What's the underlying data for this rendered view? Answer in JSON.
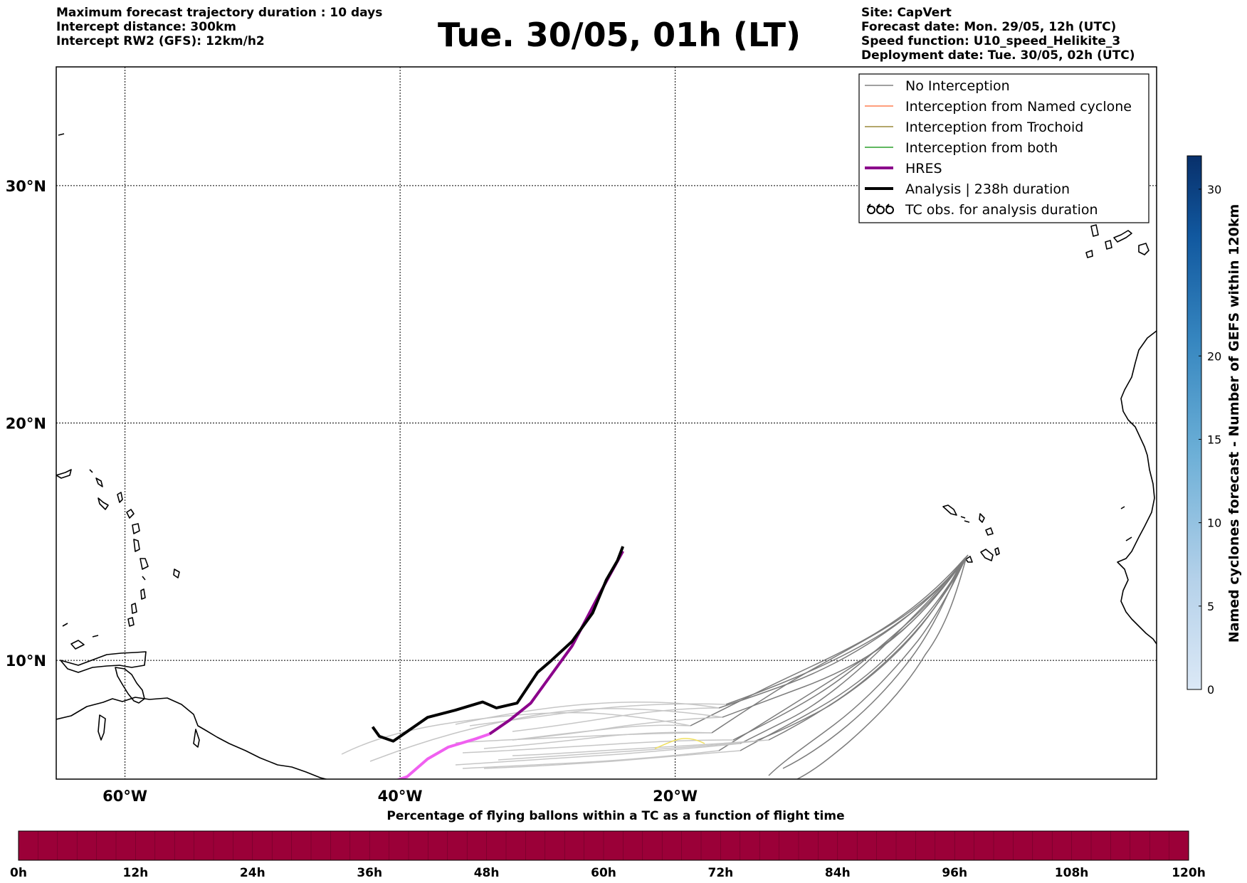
{
  "header": {
    "left": [
      "Maximum forecast trajectory duration : 10 days",
      "Intercept distance: 300km",
      "Intercept RW2 (GFS):  12km/h2"
    ],
    "title": "Tue. 30/05, 01h (LT)",
    "right": [
      "Site: CapVert",
      "Forecast date: Mon. 29/05, 12h (UTC)",
      "Speed function: U10_speed_Helikite_3",
      "Deployment date: Tue. 30/05, 02h (UTC)"
    ]
  },
  "map": {
    "lon_range": [
      -65,
      15
    ],
    "lat_range": [
      5,
      35
    ],
    "lon_ticks": [
      {
        "value": -60,
        "label": "60°W"
      },
      {
        "value": -40,
        "label": "40°W"
      },
      {
        "value": -20,
        "label": "20°W"
      }
    ],
    "lat_ticks": [
      {
        "value": 30,
        "label": "30°N"
      },
      {
        "value": 20,
        "label": "20°N"
      },
      {
        "value": 10,
        "label": "10°N"
      }
    ],
    "grid": true
  },
  "legend": {
    "items": [
      {
        "label": "No Interception",
        "color": "#808080",
        "style": "thin-line"
      },
      {
        "label": "Interception from Named cyclone",
        "color": "#ff7f50",
        "style": "thin-line"
      },
      {
        "label": "Interception from Trochoid",
        "color": "#9a8a3a",
        "style": "thin-line"
      },
      {
        "label": "Interception from both",
        "color": "#2ca02c",
        "style": "thin-line"
      },
      {
        "label": "HRES",
        "color": "#8b008b",
        "style": "thick-line"
      },
      {
        "label": "Analysis | 238h duration",
        "color": "#000000",
        "style": "thick-line"
      },
      {
        "label": "TC obs. for analysis duration",
        "color": "#000000",
        "style": "cyclone-symbols",
        "icon": "cyclone-icon"
      }
    ]
  },
  "chart_data": {
    "type": "line",
    "series": [
      {
        "name": "Analysis | 238h duration",
        "color": "#000000",
        "points": [
          [
            -23.8,
            14.8
          ],
          [
            -24.2,
            14.2
          ],
          [
            -25.0,
            13.4
          ],
          [
            -26.0,
            12.0
          ],
          [
            -27.5,
            10.8
          ],
          [
            -29.0,
            10.0
          ],
          [
            -30.0,
            9.5
          ],
          [
            -31.5,
            8.2
          ],
          [
            -33.0,
            8.0
          ],
          [
            -34.0,
            8.25
          ],
          [
            -36.0,
            7.9
          ],
          [
            -38.0,
            7.6
          ],
          [
            -39.5,
            7.0
          ],
          [
            -40.5,
            6.6
          ],
          [
            -41.5,
            6.8
          ],
          [
            -42.0,
            7.2
          ]
        ]
      },
      {
        "name": "HRES",
        "color": "#8b008b",
        "points": [
          [
            -23.8,
            14.6
          ],
          [
            -25.5,
            12.8
          ],
          [
            -27.5,
            10.6
          ],
          [
            -29.5,
            9.0
          ],
          [
            -30.5,
            8.2
          ],
          [
            -32.0,
            7.5
          ],
          [
            -33.5,
            6.9
          ],
          [
            -34.5,
            6.7
          ],
          [
            -36.5,
            6.35
          ],
          [
            -38.0,
            5.85
          ],
          [
            -39.5,
            5.1
          ],
          [
            -40.5,
            4.9
          ]
        ]
      }
    ]
  },
  "colorbar_right": {
    "label": "Named cyclones forecast - Number of GEFS within 120km",
    "ticks": [
      "0",
      "5",
      "10",
      "15",
      "20",
      "30"
    ],
    "tick_values": [
      0,
      5,
      10,
      15,
      20,
      30
    ],
    "max": 32
  },
  "colorbar_bottom": {
    "title": "Percentage of flying ballons within a TC as a function of flight time",
    "ticks": [
      "0h",
      "12h",
      "24h",
      "36h",
      "48h",
      "60h",
      "72h",
      "84h",
      "96h",
      "108h",
      "120h"
    ],
    "fill_color": "#9b0038"
  }
}
